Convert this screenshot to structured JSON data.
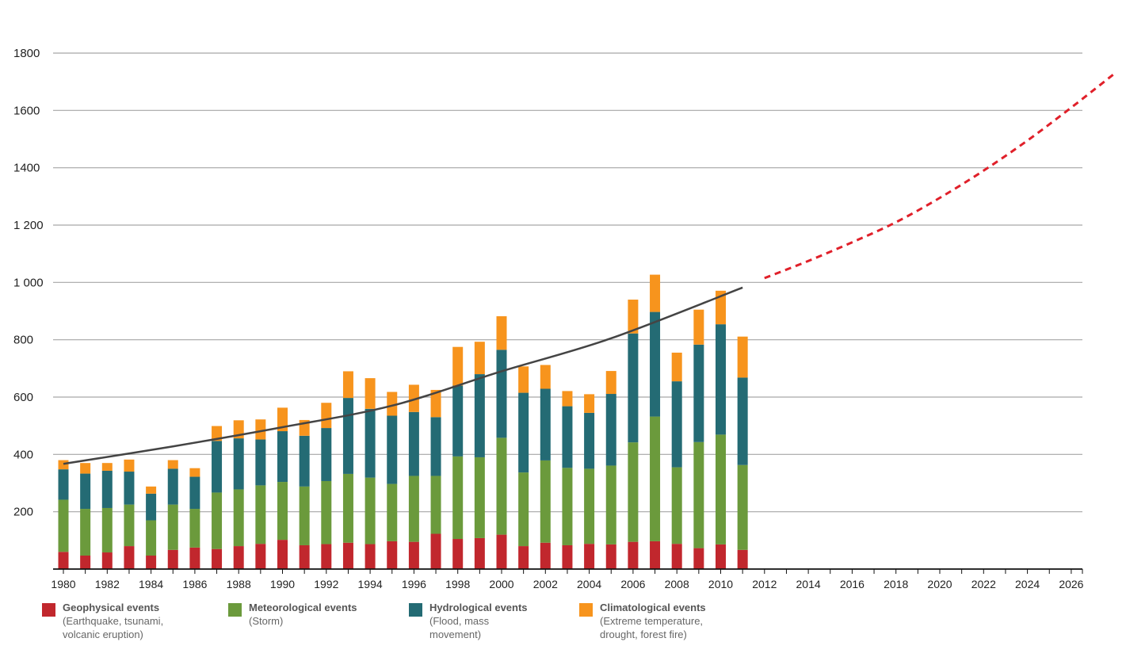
{
  "chart_data": {
    "type": "bar",
    "stacked": true,
    "title": "",
    "xlabel": "",
    "ylabel": "",
    "ylim": [
      0,
      1800
    ],
    "yticks": [
      {
        "value": 200,
        "label": "200"
      },
      {
        "value": 400,
        "label": "400"
      },
      {
        "value": 600,
        "label": "600"
      },
      {
        "value": 800,
        "label": "800"
      },
      {
        "value": 1000,
        "label": "1 000"
      },
      {
        "value": 1200,
        "label": "1 200"
      },
      {
        "value": 1400,
        "label": "1400"
      },
      {
        "value": 1600,
        "label": "1600"
      },
      {
        "value": 1800,
        "label": "1800"
      }
    ],
    "xlim": [
      1980,
      2027
    ],
    "xticks": [
      "1980",
      "1982",
      "1984",
      "1986",
      "1988",
      "1990",
      "1992",
      "1994",
      "1996",
      "1998",
      "2000",
      "2002",
      "2004",
      "2006",
      "2008",
      "2010",
      "2012",
      "2014",
      "2016",
      "2018",
      "2020",
      "2022",
      "2024",
      "2026"
    ],
    "grid": true,
    "legend_position": "bottom",
    "categories": [
      1980,
      1981,
      1982,
      1983,
      1984,
      1985,
      1986,
      1987,
      1988,
      1989,
      1990,
      1991,
      1992,
      1993,
      1994,
      1995,
      1996,
      1997,
      1998,
      1999,
      2000,
      2001,
      2002,
      2003,
      2004,
      2005,
      2006,
      2007,
      2008,
      2009,
      2010,
      2011
    ],
    "series": [
      {
        "name": "Geophysical events",
        "description": "(Earthquake, tsunami,\nvolcanic eruption)",
        "color": "#c1272d",
        "values": [
          60,
          47,
          58,
          80,
          47,
          67,
          75,
          70,
          80,
          88,
          102,
          83,
          87,
          92,
          87,
          97,
          95,
          123,
          105,
          108,
          120,
          80,
          92,
          83,
          88,
          86,
          95,
          97,
          88,
          73,
          86,
          67
        ]
      },
      {
        "name": "Meteorological events",
        "description": "(Storm)",
        "color": "#6b9a3c",
        "values": [
          182,
          163,
          155,
          145,
          123,
          158,
          135,
          197,
          198,
          204,
          202,
          205,
          220,
          240,
          232,
          200,
          230,
          202,
          288,
          282,
          338,
          257,
          287,
          270,
          262,
          275,
          347,
          435,
          267,
          370,
          383,
          296
        ]
      },
      {
        "name": "Hydrological events",
        "description": "(Flood, mass\nmovement)",
        "color": "#246b74",
        "values": [
          106,
          123,
          130,
          115,
          93,
          125,
          112,
          180,
          178,
          160,
          177,
          177,
          185,
          265,
          240,
          238,
          223,
          205,
          247,
          290,
          307,
          278,
          250,
          215,
          195,
          250,
          380,
          365,
          300,
          340,
          385,
          305
        ]
      },
      {
        "name": "Climatological events",
        "description": "(Extreme temperature,\ndrought, forest fire)",
        "color": "#f7941d",
        "values": [
          32,
          37,
          27,
          42,
          25,
          30,
          30,
          52,
          63,
          70,
          82,
          55,
          88,
          93,
          107,
          83,
          95,
          95,
          135,
          113,
          117,
          92,
          83,
          53,
          65,
          80,
          118,
          130,
          100,
          122,
          117,
          143
        ]
      }
    ],
    "trend": {
      "color": "#444444",
      "x": [
        1980,
        1985,
        1990,
        1995,
        2000,
        2005,
        2011
      ],
      "y": [
        367,
        428,
        495,
        570,
        690,
        805,
        982
      ]
    },
    "projection": {
      "color": "#e0202a",
      "style": "dashed",
      "x": [
        2012,
        2014,
        2016,
        2018,
        2020,
        2022,
        2024,
        2026,
        2028
      ],
      "y": [
        1015,
        1075,
        1140,
        1210,
        1295,
        1390,
        1495,
        1610,
        1730
      ]
    }
  }
}
